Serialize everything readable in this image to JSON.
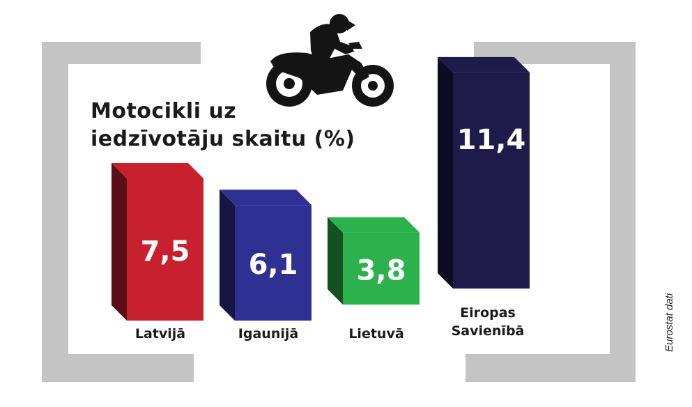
{
  "chart_data": {
    "type": "bar",
    "title_lines": [
      "Motocikli uz",
      "iedzīvotāju skaitu (%)"
    ],
    "categories": [
      "Latvijā",
      "Igaunijā",
      "Lietuvā",
      "Eiropas Savienībā"
    ],
    "category_lines": [
      [
        "Latvijā"
      ],
      [
        "Igaunijā"
      ],
      [
        "Lietuvā"
      ],
      [
        "Eiropas",
        "Savienībā"
      ]
    ],
    "values": [
      7.5,
      6.1,
      3.8,
      11.4
    ],
    "value_labels": [
      "7,5",
      "6,1",
      "3,8",
      "11,4"
    ],
    "colors": [
      "#c8202f",
      "#2e3192",
      "#2bb24c",
      "#1e1b4b"
    ],
    "ylim": [
      0,
      12
    ],
    "grid": false,
    "legend": "none",
    "source": "Eurostat dati",
    "decoration": "motorcycle-rider-icon"
  }
}
